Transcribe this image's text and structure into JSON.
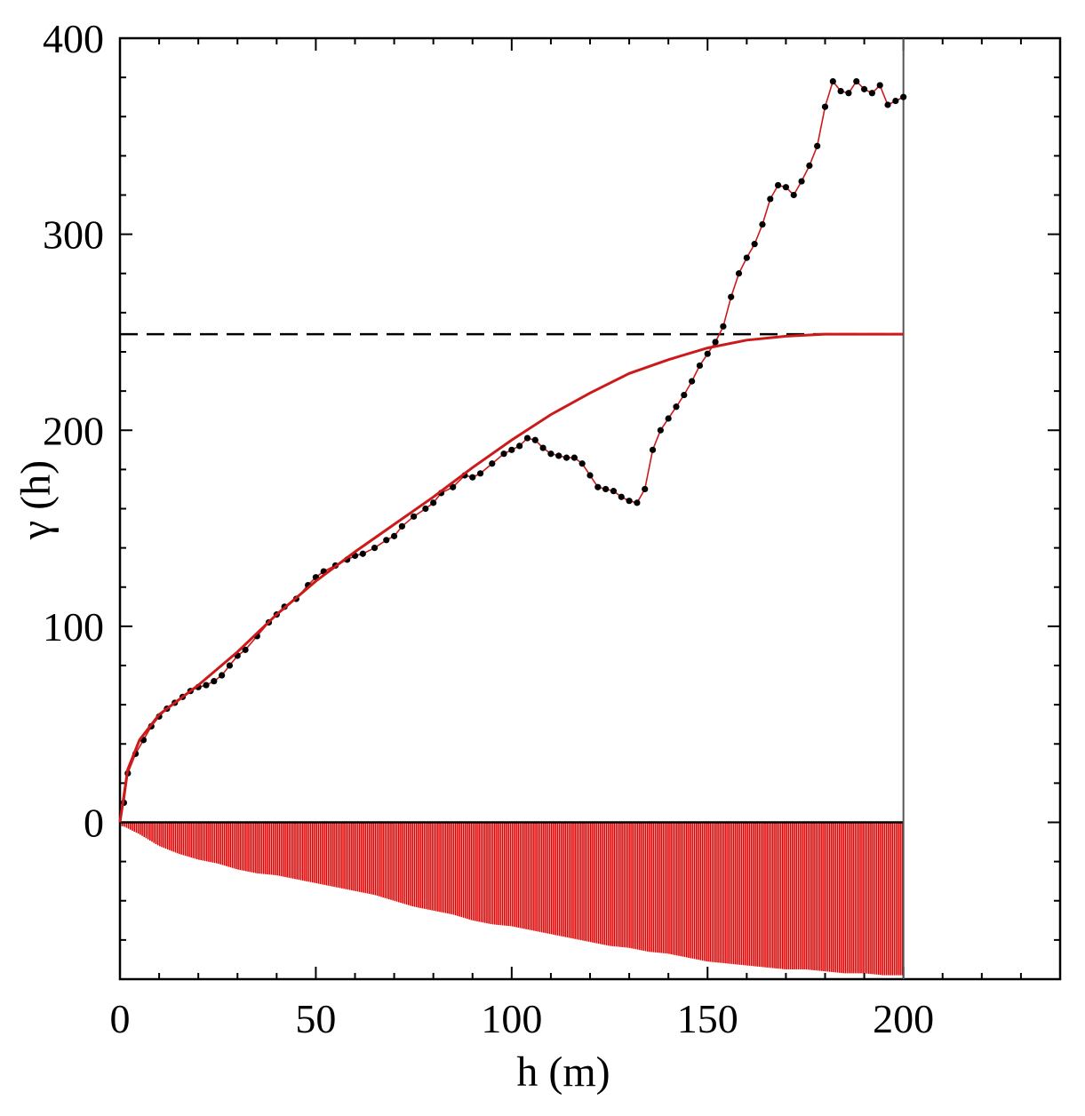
{
  "chart_data": {
    "type": "line",
    "title": "",
    "xlabel": "h (m)",
    "ylabel": "γ (h)",
    "xlim": [
      0,
      240
    ],
    "ylim": [
      -80,
      400
    ],
    "xticks": [
      0,
      50,
      100,
      150,
      200
    ],
    "yticks": [
      0,
      100,
      200,
      300,
      400
    ],
    "xtick_labels": [
      "0",
      "50",
      "100",
      "150",
      "200"
    ],
    "ytick_labels": [
      "0",
      "100",
      "200",
      "300",
      "400"
    ],
    "grid": false,
    "legend": "none",
    "colors": {
      "experimental": "#000000",
      "model": "#cc1a1a",
      "sill_line": "#000000",
      "histogram": "#e00000"
    },
    "series": [
      {
        "kind": "experimental_points",
        "x": [
          1,
          2,
          4,
          6,
          8,
          10,
          12,
          14,
          16,
          18,
          20,
          22,
          24,
          26,
          28,
          30,
          32,
          35,
          38,
          40,
          42,
          45,
          48,
          50,
          52,
          55,
          58,
          60,
          62,
          65,
          68,
          70,
          72,
          75,
          78,
          80,
          82,
          85,
          88,
          90,
          92,
          95,
          98,
          100,
          102,
          104,
          106,
          108,
          110,
          112,
          114,
          116,
          118,
          120,
          122,
          124,
          126,
          128,
          130,
          132,
          134,
          136,
          138,
          140,
          142,
          144,
          146,
          148,
          150,
          152,
          154,
          156,
          158,
          160,
          162,
          164,
          166,
          168,
          170,
          172,
          174,
          176,
          178,
          180,
          182,
          184,
          186,
          188,
          190,
          192,
          194,
          196,
          198,
          200
        ],
        "y": [
          10,
          25,
          35,
          42,
          49,
          54,
          58,
          61,
          64,
          67,
          69,
          70,
          72,
          75,
          80,
          85,
          88,
          95,
          102,
          106,
          110,
          114,
          121,
          125,
          128,
          131,
          134,
          136,
          137,
          140,
          144,
          146,
          151,
          156,
          160,
          163,
          168,
          171,
          177,
          176,
          178,
          183,
          188,
          190,
          192,
          196,
          195,
          191,
          188,
          187,
          186,
          186,
          183,
          177,
          171,
          170,
          169,
          166,
          164,
          163,
          170,
          190,
          200,
          206,
          212,
          218,
          225,
          233,
          239,
          245,
          253,
          268,
          280,
          288,
          295,
          305,
          318,
          325,
          324,
          320,
          327,
          335,
          345,
          365,
          378,
          373,
          372,
          378,
          374,
          372,
          376,
          366,
          368,
          370
        ]
      },
      {
        "kind": "model_curve",
        "x": [
          0,
          2,
          5,
          10,
          20,
          30,
          40,
          50,
          60,
          70,
          80,
          90,
          100,
          110,
          120,
          130,
          140,
          150,
          160,
          170,
          180,
          190,
          200
        ],
        "y": [
          0,
          27,
          42,
          55,
          70,
          87,
          106,
          123,
          138,
          152,
          166,
          181,
          195,
          208,
          219,
          229,
          236,
          242,
          246,
          248,
          249,
          249,
          249
        ]
      }
    ],
    "sill": 249,
    "histogram": {
      "note": "",
      "x": [
        1,
        5,
        10,
        15,
        20,
        25,
        30,
        35,
        40,
        45,
        50,
        55,
        60,
        65,
        70,
        75,
        80,
        85,
        90,
        95,
        100,
        105,
        110,
        115,
        120,
        125,
        130,
        135,
        140,
        145,
        150,
        155,
        160,
        165,
        170,
        175,
        180,
        185,
        190,
        195,
        200
      ],
      "y": [
        -2,
        -6,
        -12,
        -16,
        -19,
        -21,
        -24,
        -26,
        -27,
        -29,
        -31,
        -33,
        -35,
        -37,
        -40,
        -43,
        -45,
        -47,
        -50,
        -52,
        -53,
        -55,
        -57,
        -59,
        -61,
        -63,
        -64,
        -66,
        -67,
        -69,
        -71,
        -72,
        -73,
        -74,
        -75,
        -75,
        -76,
        -77,
        -77,
        -78,
        -78
      ]
    }
  }
}
